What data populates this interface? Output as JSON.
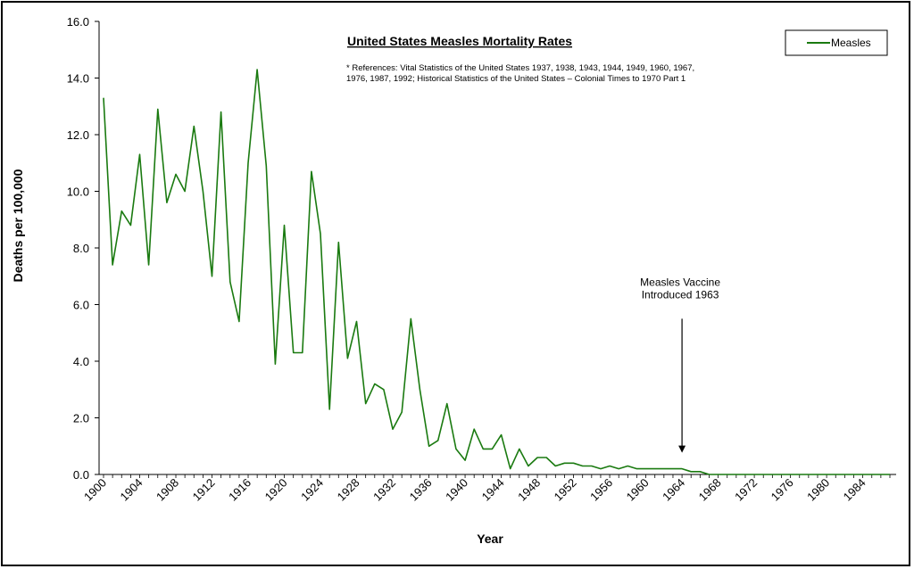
{
  "chart_data": {
    "type": "line",
    "title": "United States Measles Mortality Rates",
    "references": [
      "* References: Vital Statistics of the United States 1937, 1938, 1943, 1944, 1949, 1960, 1967,",
      "1976, 1987, 1992; Historical Statistics of the United States – Colonial Times to 1970 Part 1"
    ],
    "xlabel": "Year",
    "ylabel": "Deaths per 100,000",
    "ylim": [
      0,
      16
    ],
    "xlim": [
      1900,
      1987
    ],
    "y_ticks": [
      "0.0",
      "2.0",
      "4.0",
      "6.0",
      "8.0",
      "10.0",
      "12.0",
      "14.0",
      "16.0"
    ],
    "x_ticks": [
      "1900",
      "1904",
      "1908",
      "1912",
      "1916",
      "1920",
      "1924",
      "1928",
      "1932",
      "1936",
      "1940",
      "1944",
      "1948",
      "1952",
      "1956",
      "1960",
      "1964",
      "1968",
      "1972",
      "1976",
      "1980",
      "1984"
    ],
    "legend": "top-right",
    "series": [
      {
        "name": "Measles",
        "color": "#1a7a10",
        "x": [
          1900,
          1901,
          1902,
          1903,
          1904,
          1905,
          1906,
          1907,
          1908,
          1909,
          1910,
          1911,
          1912,
          1913,
          1914,
          1915,
          1916,
          1917,
          1918,
          1919,
          1920,
          1921,
          1922,
          1923,
          1924,
          1925,
          1926,
          1927,
          1928,
          1929,
          1930,
          1931,
          1932,
          1933,
          1934,
          1935,
          1936,
          1937,
          1938,
          1939,
          1940,
          1941,
          1942,
          1943,
          1944,
          1945,
          1946,
          1947,
          1948,
          1949,
          1950,
          1951,
          1952,
          1953,
          1954,
          1955,
          1956,
          1957,
          1958,
          1959,
          1960,
          1961,
          1962,
          1963,
          1964,
          1965,
          1966,
          1967,
          1968,
          1969,
          1970,
          1971,
          1972,
          1973,
          1974,
          1975,
          1976,
          1977,
          1978,
          1979,
          1980,
          1981,
          1982,
          1983,
          1984,
          1985,
          1986,
          1987
        ],
        "values": [
          13.3,
          7.4,
          9.3,
          8.8,
          11.3,
          7.4,
          12.9,
          9.6,
          10.6,
          10.0,
          12.3,
          10.0,
          7.0,
          12.8,
          6.8,
          5.4,
          11.0,
          14.3,
          10.9,
          3.9,
          8.8,
          4.3,
          4.3,
          10.7,
          8.5,
          2.3,
          8.2,
          4.1,
          5.4,
          2.5,
          3.2,
          3.0,
          1.6,
          2.2,
          5.5,
          3.0,
          1.0,
          1.2,
          2.5,
          0.9,
          0.5,
          1.6,
          0.9,
          0.9,
          1.4,
          0.2,
          0.9,
          0.3,
          0.6,
          0.6,
          0.3,
          0.4,
          0.4,
          0.3,
          0.3,
          0.2,
          0.3,
          0.2,
          0.3,
          0.2,
          0.2,
          0.2,
          0.2,
          0.2,
          0.2,
          0.1,
          0.1,
          0.0,
          0.0,
          0.0,
          0.0,
          0.0,
          0.0,
          0.0,
          0.0,
          0.0,
          0.0,
          0.0,
          0.0,
          0.0,
          0.0,
          0.0,
          0.0,
          0.0,
          0.0,
          0.0,
          0.0,
          0.0
        ]
      }
    ],
    "annotation": {
      "lines": [
        "Measles Vaccine",
        "Introduced 1963"
      ],
      "x": 1964,
      "arrow_from": 5.5,
      "arrow_to": 0.8
    }
  }
}
